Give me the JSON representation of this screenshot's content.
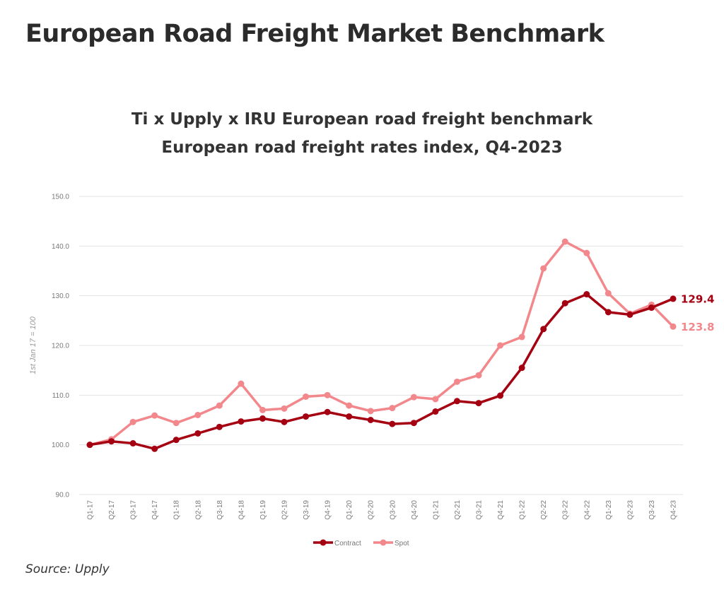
{
  "page": {
    "title": "European Road Freight Market Benchmark",
    "source": "Source: Upply"
  },
  "chart_data": {
    "type": "line",
    "title": "Ti x Upply x IRU European road freight benchmark",
    "subtitle": "European road freight rates index, Q4-2023",
    "xlabel": "",
    "ylabel": "1st Jan 17 = 100",
    "ylim": [
      90,
      150
    ],
    "yticks": [
      "90.0",
      "100.0",
      "110.0",
      "120.0",
      "130.0",
      "140.0",
      "150.0"
    ],
    "grid": true,
    "legend": "bottom",
    "categories": [
      "Q1-17",
      "Q2-17",
      "Q3-17",
      "Q4-17",
      "Q1-18",
      "Q2-18",
      "Q3-18",
      "Q4-18",
      "Q1-19",
      "Q2-19",
      "Q3-19",
      "Q4-19",
      "Q1-20",
      "Q2-20",
      "Q3-20",
      "Q4-20",
      "Q1-21",
      "Q2-21",
      "Q3-21",
      "Q4-21",
      "Q1-22",
      "Q2-22",
      "Q3-22",
      "Q4-22",
      "Q1-23",
      "Q2-23",
      "Q3-23",
      "Q4-23"
    ],
    "series": [
      {
        "name": "Contract",
        "color": "#a50012",
        "end_label": "129.4",
        "values": [
          100.0,
          100.7,
          100.3,
          99.2,
          101.0,
          102.3,
          103.6,
          104.7,
          105.3,
          104.6,
          105.7,
          106.6,
          105.7,
          105.0,
          104.2,
          104.4,
          106.7,
          108.8,
          108.4,
          109.9,
          115.5,
          123.3,
          128.5,
          130.3,
          126.7,
          126.2,
          127.6,
          129.4
        ]
      },
      {
        "name": "Spot",
        "color": "#f2878c",
        "end_label": "123.8",
        "values": [
          100.0,
          101.1,
          104.6,
          105.9,
          104.4,
          106.0,
          107.9,
          112.3,
          107.0,
          107.3,
          109.7,
          110.0,
          107.9,
          106.8,
          107.4,
          109.6,
          109.2,
          112.7,
          114.0,
          120.0,
          121.7,
          135.5,
          140.9,
          138.6,
          130.5,
          126.4,
          128.2,
          123.8
        ]
      }
    ]
  }
}
